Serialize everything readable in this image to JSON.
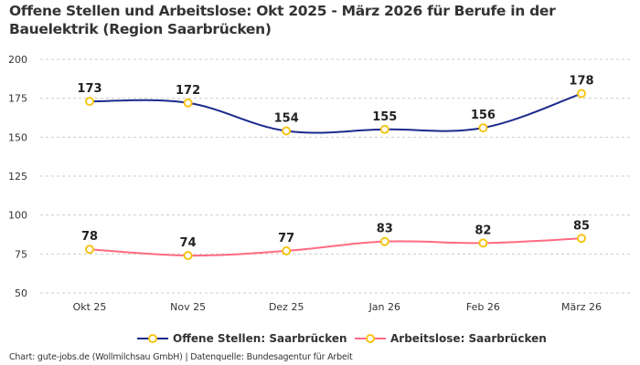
{
  "chart_data": {
    "type": "line",
    "title": "Offene Stellen und Arbeitslose: Okt 2025 - März 2026 für Berufe in der Bauelektrik (Region Saarbrücken)",
    "categories": [
      "Okt 25",
      "Nov 25",
      "Dez 25",
      "Jan 26",
      "Feb 26",
      "März 26"
    ],
    "series": [
      {
        "name": "Offene Stellen: Saarbrücken",
        "values": [
          173,
          172,
          154,
          155,
          156,
          178
        ],
        "color": "#1b2a8c"
      },
      {
        "name": "Arbeitslose: Saarbrücken",
        "values": [
          78,
          74,
          77,
          83,
          82,
          85
        ],
        "color": "#ff6b81"
      }
    ],
    "marker_color": "#f5c518",
    "ylim": [
      50,
      200
    ],
    "yticks": [
      50,
      75,
      100,
      125,
      150,
      175,
      200
    ],
    "grid": true,
    "legend": "bottom",
    "xlabel": "",
    "ylabel": ""
  },
  "footer": "Chart: gute-jobs.de (Wollmilchsau GmbH) | Datenquelle: Bundesagentur für Arbeit"
}
